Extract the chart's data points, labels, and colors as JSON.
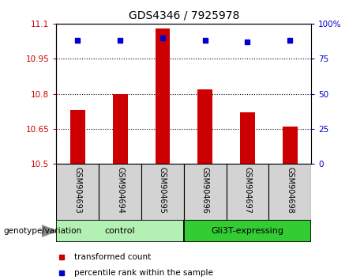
{
  "title": "GDS4346 / 7925978",
  "samples": [
    "GSM904693",
    "GSM904694",
    "GSM904695",
    "GSM904696",
    "GSM904697",
    "GSM904698"
  ],
  "transformed_counts": [
    10.73,
    10.8,
    11.08,
    10.82,
    10.72,
    10.66
  ],
  "percentile_ranks": [
    88,
    88,
    90,
    88,
    87,
    88
  ],
  "bar_color": "#cc0000",
  "dot_color": "#0000cc",
  "ylim_left": [
    10.5,
    11.1
  ],
  "ylim_right": [
    0,
    100
  ],
  "yticks_left": [
    10.5,
    10.65,
    10.8,
    10.95,
    11.1
  ],
  "ytick_labels_left": [
    "10.5",
    "10.65",
    "10.8",
    "10.95",
    "11.1"
  ],
  "yticks_right": [
    0,
    25,
    50,
    75,
    100
  ],
  "ytick_labels_right": [
    "0",
    "25",
    "50",
    "75",
    "100%"
  ],
  "groups": [
    {
      "label": "control",
      "indices": [
        0,
        1,
        2
      ],
      "color": "#b3f0b3"
    },
    {
      "label": "Gli3T-expressing",
      "indices": [
        3,
        4,
        5
      ],
      "color": "#33cc33"
    }
  ],
  "group_label_prefix": "genotype/variation",
  "legend_items": [
    {
      "label": "transformed count",
      "color": "#cc0000"
    },
    {
      "label": "percentile rank within the sample",
      "color": "#0000cc"
    }
  ],
  "bg_color": "#ffffff",
  "tick_label_color_left": "#cc0000",
  "tick_label_color_right": "#0000cc",
  "label_box_color": "#d3d3d3"
}
